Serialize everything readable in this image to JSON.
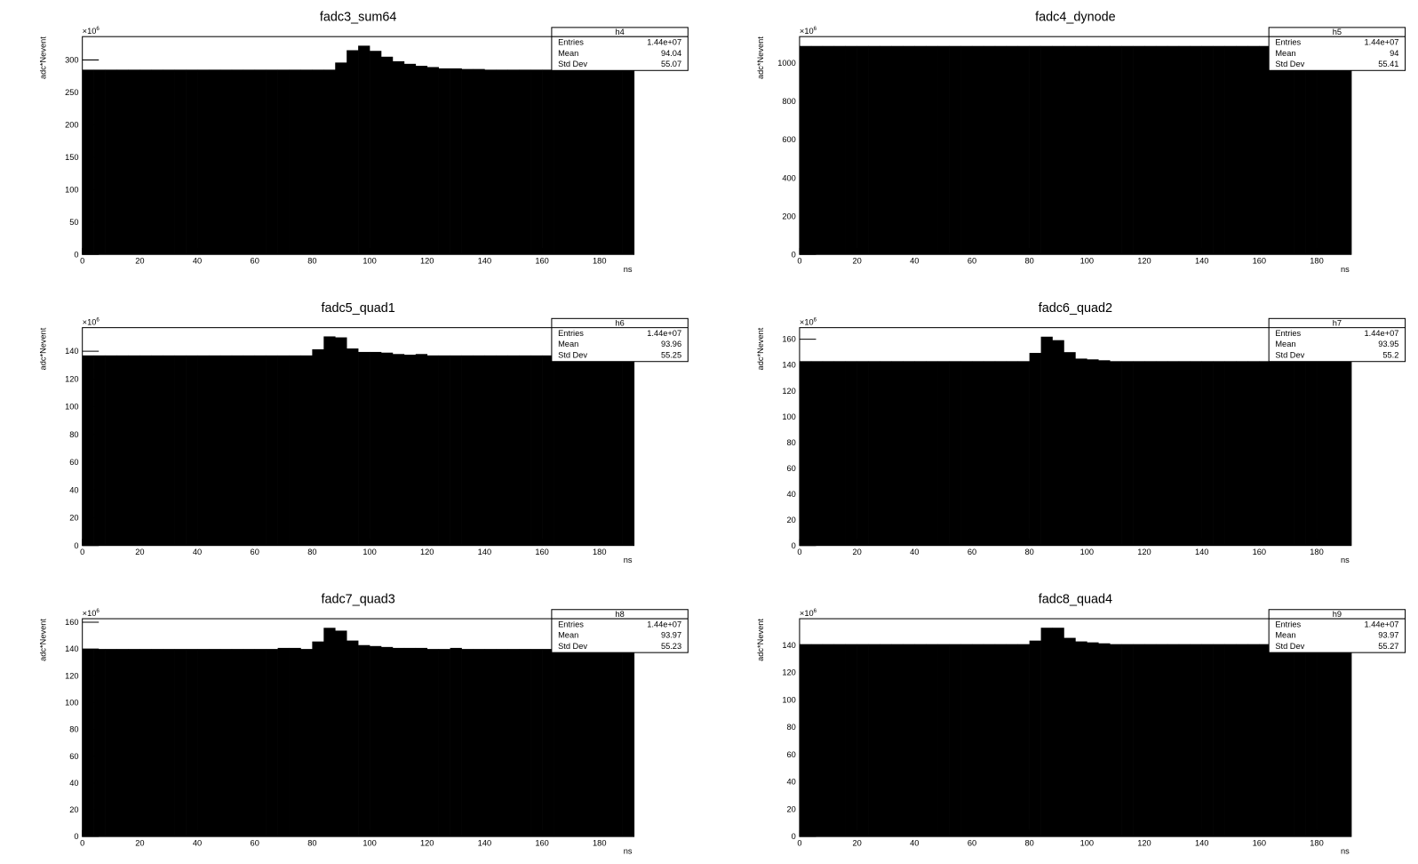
{
  "chart_data": [
    {
      "type": "histogram",
      "title": "fadc3_sum64",
      "xlabel": "ns",
      "ylabel": "adc*Nevent",
      "y_exponent_base": "×10",
      "y_exponent": "6",
      "color": "#000000",
      "bins": [
        0,
        4,
        8,
        12,
        16,
        20,
        24,
        28,
        32,
        36,
        40,
        44,
        48,
        52,
        56,
        60,
        64,
        68,
        72,
        76,
        80,
        84,
        88,
        92,
        96,
        100,
        104,
        108,
        112,
        116,
        120,
        124,
        128,
        132,
        136,
        140,
        144,
        148,
        152,
        156,
        160,
        164,
        168,
        172,
        176,
        180,
        184,
        188,
        192
      ],
      "values": [
        285,
        285,
        285,
        285,
        285,
        285,
        285,
        285,
        285,
        285,
        285,
        285,
        285,
        285,
        285,
        285,
        285,
        285,
        285,
        285,
        285,
        285,
        296,
        315,
        322,
        314,
        305,
        298,
        294,
        291,
        289,
        287,
        287,
        286,
        286,
        285,
        285,
        285,
        285,
        285,
        285,
        285,
        285,
        285,
        285,
        285,
        285,
        285
      ],
      "xlim": [
        0,
        192
      ],
      "ylim": [
        0,
        336
      ],
      "xticks": [
        0,
        20,
        40,
        60,
        80,
        100,
        120,
        140,
        160,
        180
      ],
      "yticks": [
        0,
        50,
        100,
        150,
        200,
        250,
        300
      ],
      "stats": {
        "name": "h4",
        "rows": [
          [
            "Entries",
            "1.44e+07"
          ],
          [
            "Mean",
            "94.04"
          ],
          [
            "Std Dev",
            "55.07"
          ]
        ]
      }
    },
    {
      "type": "histogram",
      "title": "fadc4_dynode",
      "xlabel": "ns",
      "ylabel": "adc*Nevent",
      "y_exponent_base": "×10",
      "y_exponent": "6",
      "color": "#000000",
      "bins": [
        0,
        4,
        8,
        12,
        16,
        20,
        24,
        28,
        32,
        36,
        40,
        44,
        48,
        52,
        56,
        60,
        64,
        68,
        72,
        76,
        80,
        84,
        88,
        92,
        96,
        100,
        104,
        108,
        112,
        116,
        120,
        124,
        128,
        132,
        136,
        140,
        144,
        148,
        152,
        156,
        160,
        164,
        168,
        172,
        176,
        180,
        184,
        188,
        192
      ],
      "values": [
        1090,
        1090,
        1090,
        1090,
        1090,
        1090,
        1090,
        1090,
        1090,
        1090,
        1090,
        1090,
        1090,
        1090,
        1090,
        1090,
        1090,
        1090,
        1090,
        1090,
        1090,
        1090,
        1090,
        1090,
        1090,
        1090,
        1090,
        1090,
        1090,
        1090,
        1090,
        1090,
        1090,
        1090,
        1090,
        1090,
        1090,
        1090,
        1090,
        1090,
        1090,
        1090,
        1090,
        1090,
        1090,
        1090,
        1090,
        1090
      ],
      "xlim": [
        0,
        192
      ],
      "ylim": [
        0,
        1139
      ],
      "xticks": [
        0,
        20,
        40,
        60,
        80,
        100,
        120,
        140,
        160,
        180
      ],
      "yticks": [
        0,
        200,
        400,
        600,
        800,
        1000
      ],
      "stats": {
        "name": "h5",
        "rows": [
          [
            "Entries",
            "1.44e+07"
          ],
          [
            "Mean",
            "94"
          ],
          [
            "Std Dev",
            "55.41"
          ]
        ]
      }
    },
    {
      "type": "histogram",
      "title": "fadc5_quad1",
      "xlabel": "ns",
      "ylabel": "adc*Nevent",
      "y_exponent_base": "×10",
      "y_exponent": "6",
      "color": "#000000",
      "bins": [
        0,
        4,
        8,
        12,
        16,
        20,
        24,
        28,
        32,
        36,
        40,
        44,
        48,
        52,
        56,
        60,
        64,
        68,
        72,
        76,
        80,
        84,
        88,
        92,
        96,
        100,
        104,
        108,
        112,
        116,
        120,
        124,
        128,
        132,
        136,
        140,
        144,
        148,
        152,
        156,
        160,
        164,
        168,
        172,
        176,
        180,
        184,
        188,
        192
      ],
      "values": [
        137,
        137,
        137,
        137,
        137,
        137,
        137,
        137,
        137,
        137,
        137,
        137,
        137,
        137,
        137,
        137,
        137,
        137,
        137,
        137,
        141.4,
        150.7,
        150,
        142,
        139.5,
        139.5,
        139,
        138,
        137.5,
        138,
        137,
        137,
        137,
        137,
        137,
        137,
        137,
        137,
        137,
        137,
        137,
        137,
        137,
        137,
        137,
        137,
        137,
        137
      ],
      "xlim": [
        0,
        192
      ],
      "ylim": [
        0,
        157
      ],
      "xticks": [
        0,
        20,
        40,
        60,
        80,
        100,
        120,
        140,
        160,
        180
      ],
      "yticks": [
        0,
        20,
        40,
        60,
        80,
        100,
        120,
        140
      ],
      "stats": {
        "name": "h6",
        "rows": [
          [
            "Entries",
            "1.44e+07"
          ],
          [
            "Mean",
            "93.96"
          ],
          [
            "Std Dev",
            "55.25"
          ]
        ]
      }
    },
    {
      "type": "histogram",
      "title": "fadc6_quad2",
      "xlabel": "ns",
      "ylabel": "adc*Nevent",
      "y_exponent_base": "×10",
      "y_exponent": "6",
      "color": "#000000",
      "bins": [
        0,
        4,
        8,
        12,
        16,
        20,
        24,
        28,
        32,
        36,
        40,
        44,
        48,
        52,
        56,
        60,
        64,
        68,
        72,
        76,
        80,
        84,
        88,
        92,
        96,
        100,
        104,
        108,
        112,
        116,
        120,
        124,
        128,
        132,
        136,
        140,
        144,
        148,
        152,
        156,
        160,
        164,
        168,
        172,
        176,
        180,
        184,
        188,
        192
      ],
      "values": [
        143,
        143,
        143,
        143,
        143,
        143,
        143,
        143,
        143,
        143,
        143,
        143,
        143,
        143,
        143,
        143,
        143,
        143,
        143,
        143,
        149.4,
        162,
        159.3,
        150,
        145,
        144.4,
        143.7,
        143,
        143,
        143,
        143,
        143,
        143,
        143,
        143,
        143,
        143,
        143,
        143,
        143,
        143,
        143,
        143,
        143,
        143,
        143,
        143,
        143
      ],
      "xlim": [
        0,
        192
      ],
      "ylim": [
        0,
        169
      ],
      "xticks": [
        0,
        20,
        40,
        60,
        80,
        100,
        120,
        140,
        160,
        180
      ],
      "yticks": [
        0,
        20,
        40,
        60,
        80,
        100,
        120,
        140,
        160
      ],
      "stats": {
        "name": "h7",
        "rows": [
          [
            "Entries",
            "1.44e+07"
          ],
          [
            "Mean",
            "93.95"
          ],
          [
            "Std Dev",
            "55.2"
          ]
        ]
      }
    },
    {
      "type": "histogram",
      "title": "fadc7_quad3",
      "xlabel": "ns",
      "ylabel": "adc*Nevent",
      "y_exponent_base": "×10",
      "y_exponent": "6",
      "color": "#000000",
      "bins": [
        0,
        4,
        8,
        12,
        16,
        20,
        24,
        28,
        32,
        36,
        40,
        44,
        48,
        52,
        56,
        60,
        64,
        68,
        72,
        76,
        80,
        84,
        88,
        92,
        96,
        100,
        104,
        108,
        112,
        116,
        120,
        124,
        128,
        132,
        136,
        140,
        144,
        148,
        152,
        156,
        160,
        164,
        168,
        172,
        176,
        180,
        184,
        188,
        192
      ],
      "values": [
        140,
        140,
        140,
        140,
        140,
        140,
        140,
        140,
        140,
        140,
        140,
        140,
        140,
        140,
        140,
        140,
        140,
        140.8,
        140.8,
        140,
        145.6,
        155.8,
        153.7,
        146.3,
        142.9,
        142.2,
        141.5,
        140.8,
        140.8,
        140.8,
        140,
        140,
        140.8,
        140,
        140,
        140,
        140,
        140,
        140,
        140,
        140,
        140,
        140,
        140,
        140,
        140,
        140,
        140
      ],
      "xlim": [
        0,
        192
      ],
      "ylim": [
        0,
        162.6
      ],
      "xticks": [
        0,
        20,
        40,
        60,
        80,
        100,
        120,
        140,
        160,
        180
      ],
      "yticks": [
        0,
        20,
        40,
        60,
        80,
        100,
        120,
        140,
        160
      ],
      "stats": {
        "name": "h8",
        "rows": [
          [
            "Entries",
            "1.44e+07"
          ],
          [
            "Mean",
            "93.97"
          ],
          [
            "Std Dev",
            "55.23"
          ]
        ]
      }
    },
    {
      "type": "histogram",
      "title": "fadc8_quad4",
      "xlabel": "ns",
      "ylabel": "adc*Nevent",
      "y_exponent_base": "×10",
      "y_exponent": "6",
      "color": "#000000",
      "bins": [
        0,
        4,
        8,
        12,
        16,
        20,
        24,
        28,
        32,
        36,
        40,
        44,
        48,
        52,
        56,
        60,
        64,
        68,
        72,
        76,
        80,
        84,
        88,
        92,
        96,
        100,
        104,
        108,
        112,
        116,
        120,
        124,
        128,
        132,
        136,
        140,
        144,
        148,
        152,
        156,
        160,
        164,
        168,
        172,
        176,
        180,
        184,
        188,
        192
      ],
      "values": [
        140.7,
        140.7,
        140.7,
        140.7,
        140.7,
        140.7,
        140.7,
        140.7,
        140.7,
        140.7,
        140.7,
        140.7,
        140.7,
        140.7,
        140.7,
        140.7,
        140.7,
        140.7,
        140.7,
        140.7,
        143.3,
        152.7,
        152.7,
        145.3,
        142.7,
        142,
        141.3,
        140.7,
        140.7,
        140.7,
        140.7,
        140.7,
        140.7,
        140.7,
        140.7,
        140.7,
        140.7,
        140.7,
        140.7,
        140.7,
        140.7,
        140.7,
        140.7,
        140.7,
        140.7,
        140.7,
        140.7,
        140.7
      ],
      "xlim": [
        0,
        192
      ],
      "ylim": [
        0,
        159.3
      ],
      "xticks": [
        0,
        20,
        40,
        60,
        80,
        100,
        120,
        140,
        160,
        180
      ],
      "yticks": [
        0,
        20,
        40,
        60,
        80,
        100,
        120,
        140
      ],
      "stats": {
        "name": "h9",
        "rows": [
          [
            "Entries",
            "1.44e+07"
          ],
          [
            "Mean",
            "93.97"
          ],
          [
            "Std Dev",
            "55.27"
          ]
        ]
      }
    }
  ]
}
